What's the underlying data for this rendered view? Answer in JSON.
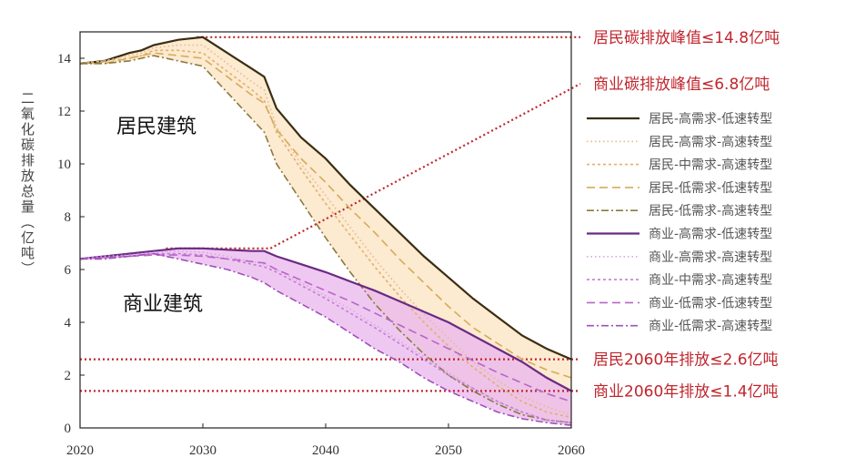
{
  "chart_data": {
    "type": "line",
    "ylabel": "二氧化碳排放总量（亿吨）",
    "xlim": [
      2020,
      2060
    ],
    "ylim": [
      0,
      15
    ],
    "x_ticks": [
      "2020",
      "2030",
      "2040",
      "2050",
      "2060"
    ],
    "y_ticks": [
      "0",
      "2",
      "4",
      "6",
      "8",
      "10",
      "12",
      "14"
    ],
    "region_labels": {
      "residential": "居民建筑",
      "commercial": "商业建筑"
    },
    "annotations": [
      {
        "text": "居民碳排放峰值≤14.8亿吨",
        "color": "#c0262d"
      },
      {
        "text": "商业碳排放峰值≤6.8亿吨",
        "color": "#c0262d"
      },
      {
        "text": "居民2060年排放≤2.6亿吨",
        "color": "#c0262d"
      },
      {
        "text": "商业2060年排放≤1.4亿吨",
        "color": "#c0262d"
      }
    ],
    "band_colors": {
      "residential": "#fbe3c2",
      "commercial": "#eab6ee"
    },
    "series": [
      {
        "name": "居民-高需求-低速转型",
        "color": "#3a2e12",
        "style": "solid",
        "x": [
          2020,
          2022,
          2024,
          2025,
          2026,
          2028,
          2030,
          2032,
          2034,
          2035,
          2036,
          2038,
          2040,
          2042,
          2044,
          2046,
          2048,
          2050,
          2052,
          2054,
          2056,
          2058,
          2060
        ],
        "y": [
          13.8,
          13.9,
          14.2,
          14.3,
          14.5,
          14.7,
          14.8,
          14.2,
          13.6,
          13.3,
          12.1,
          11.0,
          10.2,
          9.2,
          8.3,
          7.4,
          6.5,
          5.7,
          4.9,
          4.2,
          3.5,
          3.0,
          2.6
        ]
      },
      {
        "name": "居民-高需求-高速转型",
        "color": "#e8b98a",
        "style": "dotted",
        "x": [
          2020,
          2022,
          2024,
          2025,
          2026,
          2028,
          2030,
          2032,
          2034,
          2035,
          2036,
          2038,
          2040,
          2042,
          2044,
          2046,
          2048,
          2050,
          2052,
          2054,
          2056,
          2058,
          2060
        ],
        "y": [
          13.8,
          13.9,
          14.1,
          14.2,
          14.4,
          14.5,
          14.5,
          13.8,
          13.1,
          12.8,
          11.4,
          10.0,
          8.8,
          7.6,
          6.4,
          5.3,
          4.3,
          3.4,
          2.5,
          1.8,
          1.2,
          0.8,
          0.5
        ]
      },
      {
        "name": "居民-中需求-高速转型",
        "color": "#e2b06a",
        "style": "smalldash",
        "x": [
          2020,
          2022,
          2024,
          2025,
          2026,
          2028,
          2030,
          2032,
          2034,
          2035,
          2036,
          2038,
          2040,
          2042,
          2044,
          2046,
          2048,
          2050,
          2052,
          2054,
          2056,
          2058,
          2060
        ],
        "y": [
          13.8,
          13.9,
          14.0,
          14.1,
          14.3,
          14.3,
          14.2,
          13.5,
          12.8,
          12.4,
          11.2,
          9.8,
          8.5,
          7.3,
          6.1,
          5.0,
          4.0,
          3.1,
          2.3,
          1.6,
          1.0,
          0.6,
          0.4
        ]
      },
      {
        "name": "居民-低需求-低速转型",
        "color": "#d7aa5a",
        "style": "longdash",
        "x": [
          2020,
          2022,
          2024,
          2025,
          2026,
          2028,
          2030,
          2032,
          2034,
          2035,
          2036,
          2038,
          2040,
          2042,
          2044,
          2046,
          2048,
          2050,
          2052,
          2054,
          2056,
          2058,
          2060
        ],
        "y": [
          13.8,
          13.8,
          14.0,
          14.1,
          14.2,
          14.1,
          14.0,
          13.3,
          12.6,
          12.3,
          11.3,
          10.2,
          9.3,
          8.3,
          7.4,
          6.4,
          5.5,
          4.6,
          3.8,
          3.2,
          2.6,
          2.2,
          1.9
        ]
      },
      {
        "name": "居民-低需求-高速转型",
        "color": "#8a7a3c",
        "style": "dashdot",
        "x": [
          2020,
          2022,
          2024,
          2025,
          2026,
          2028,
          2030,
          2032,
          2034,
          2035,
          2036,
          2038,
          2040,
          2042,
          2044,
          2046,
          2048,
          2050,
          2052,
          2054,
          2056,
          2058,
          2060
        ],
        "y": [
          13.8,
          13.8,
          13.9,
          14.0,
          14.1,
          13.9,
          13.7,
          12.7,
          11.7,
          11.2,
          10.0,
          8.6,
          7.2,
          5.9,
          4.7,
          3.7,
          2.8,
          2.0,
          1.4,
          0.9,
          0.5,
          0.3,
          0.2
        ]
      },
      {
        "name": "商业-高需求-低速转型",
        "color": "#6a2a82",
        "style": "solid",
        "x": [
          2020,
          2022,
          2024,
          2026,
          2028,
          2030,
          2032,
          2034,
          2035,
          2036,
          2038,
          2040,
          2042,
          2044,
          2046,
          2048,
          2050,
          2052,
          2054,
          2056,
          2058,
          2060
        ],
        "y": [
          6.4,
          6.5,
          6.6,
          6.7,
          6.8,
          6.8,
          6.75,
          6.7,
          6.7,
          6.5,
          6.2,
          5.9,
          5.55,
          5.2,
          4.8,
          4.4,
          4.0,
          3.5,
          3.0,
          2.5,
          1.9,
          1.4
        ]
      },
      {
        "name": "商业-高需求-高速转型",
        "color": "#d8a6e0",
        "style": "dotted",
        "x": [
          2020,
          2022,
          2024,
          2026,
          2028,
          2030,
          2032,
          2034,
          2035,
          2036,
          2038,
          2040,
          2042,
          2044,
          2046,
          2048,
          2050,
          2052,
          2054,
          2056,
          2058,
          2060
        ],
        "y": [
          6.4,
          6.5,
          6.55,
          6.65,
          6.7,
          6.65,
          6.5,
          6.3,
          6.2,
          6.0,
          5.5,
          5.0,
          4.5,
          3.9,
          3.3,
          2.7,
          2.1,
          1.5,
          1.0,
          0.6,
          0.3,
          0.15
        ]
      },
      {
        "name": "商业-中需求-高速转型",
        "color": "#c27ed0",
        "style": "smalldash",
        "x": [
          2020,
          2022,
          2024,
          2026,
          2028,
          2030,
          2032,
          2034,
          2035,
          2036,
          2038,
          2040,
          2042,
          2044,
          2046,
          2048,
          2050,
          2052,
          2054,
          2056,
          2058,
          2060
        ],
        "y": [
          6.4,
          6.45,
          6.5,
          6.6,
          6.6,
          6.55,
          6.4,
          6.2,
          6.1,
          5.9,
          5.4,
          4.9,
          4.35,
          3.8,
          3.2,
          2.6,
          2.0,
          1.5,
          1.0,
          0.6,
          0.3,
          0.2
        ]
      },
      {
        "name": "商业-低需求-低速转型",
        "color": "#b866c8",
        "style": "longdash",
        "x": [
          2020,
          2022,
          2024,
          2026,
          2028,
          2030,
          2032,
          2034,
          2035,
          2036,
          2038,
          2040,
          2042,
          2044,
          2046,
          2048,
          2050,
          2052,
          2054,
          2056,
          2058,
          2060
        ],
        "y": [
          6.4,
          6.45,
          6.5,
          6.55,
          6.55,
          6.5,
          6.4,
          6.3,
          6.25,
          6.0,
          5.6,
          5.2,
          4.8,
          4.35,
          3.9,
          3.45,
          3.0,
          2.55,
          2.1,
          1.7,
          1.3,
          1.0
        ]
      },
      {
        "name": "商业-低需求-高速转型",
        "color": "#a04fbb",
        "style": "dashdot",
        "x": [
          2020,
          2022,
          2024,
          2026,
          2028,
          2030,
          2032,
          2034,
          2035,
          2036,
          2038,
          2040,
          2042,
          2044,
          2046,
          2048,
          2050,
          2052,
          2054,
          2056,
          2058,
          2060
        ],
        "y": [
          6.4,
          6.4,
          6.5,
          6.6,
          6.4,
          6.2,
          6.0,
          5.7,
          5.5,
          5.2,
          4.7,
          4.2,
          3.6,
          3.0,
          2.5,
          1.9,
          1.4,
          1.0,
          0.6,
          0.35,
          0.2,
          0.1
        ]
      }
    ]
  }
}
